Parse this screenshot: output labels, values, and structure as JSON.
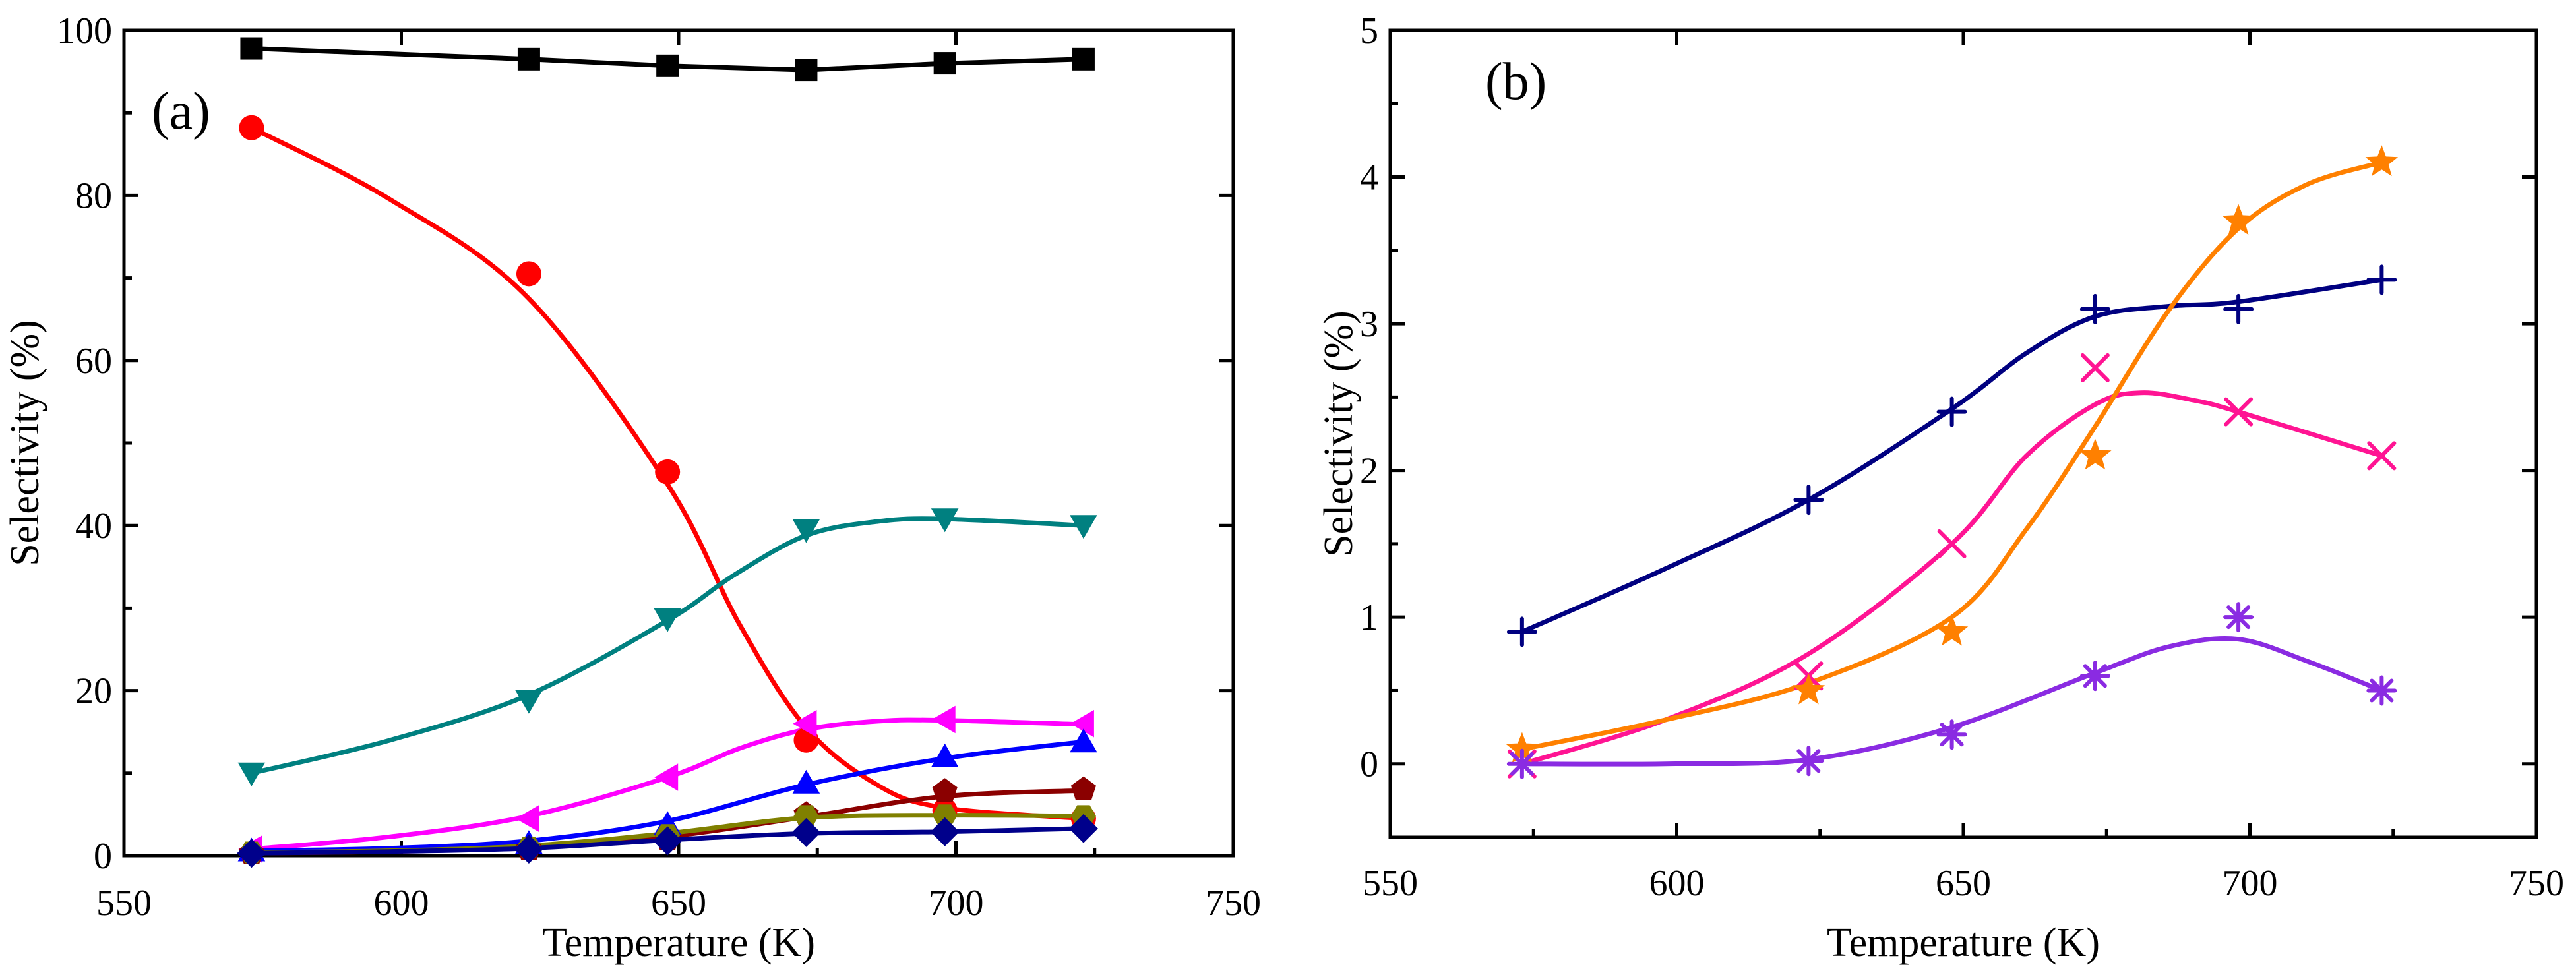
{
  "chart_data": [
    {
      "type": "line",
      "panel_label": "(a)",
      "xlabel": "Temperature (K)",
      "ylabel": "Selectivity (%)",
      "xlim": [
        550,
        750
      ],
      "ylim": [
        0,
        100
      ],
      "xticks": [
        550,
        600,
        650,
        700,
        750
      ],
      "yticks": [
        0,
        20,
        40,
        60,
        80,
        100
      ],
      "x": [
        573,
        623,
        648,
        673,
        698,
        723
      ],
      "series": [
        {
          "name": "square",
          "marker": "square",
          "color": "#000000",
          "line": "straight",
          "values": [
            97.8,
            96.5,
            95.7,
            95.2,
            96.0,
            96.5
          ]
        },
        {
          "name": "circle",
          "marker": "circle",
          "color": "#ff0000",
          "line": "smooth",
          "values": [
            88.2,
            70.5,
            46.5,
            14.0,
            5.5,
            4.5
          ],
          "fit": [
            [
              573,
              88.2
            ],
            [
              598,
              79.5
            ],
            [
              623,
              67.5
            ],
            [
              648,
              45.0
            ],
            [
              661,
              28.0
            ],
            [
              673,
              15.5
            ],
            [
              686,
              8.5
            ],
            [
              698,
              5.8
            ],
            [
              723,
              4.5
            ]
          ]
        },
        {
          "name": "triangle-down",
          "marker": "triangle-down",
          "color": "#008080",
          "line": "smooth",
          "values": [
            10.0,
            18.8,
            28.7,
            39.5,
            40.8,
            40.0
          ],
          "fit": [
            [
              573,
              10.0
            ],
            [
              598,
              14.0
            ],
            [
              623,
              19.5
            ],
            [
              648,
              28.5
            ],
            [
              660,
              34.0
            ],
            [
              673,
              38.8
            ],
            [
              686,
              40.5
            ],
            [
              698,
              40.8
            ],
            [
              723,
              40.0
            ]
          ]
        },
        {
          "name": "triangle-left",
          "marker": "triangle-left",
          "color": "#ff00ff",
          "line": "smooth",
          "values": [
            0.8,
            4.5,
            9.5,
            16.0,
            16.5,
            16.0
          ],
          "fit": [
            [
              573,
              0.8
            ],
            [
              598,
              2.3
            ],
            [
              623,
              4.8
            ],
            [
              648,
              9.5
            ],
            [
              661,
              13.0
            ],
            [
              673,
              15.3
            ],
            [
              686,
              16.3
            ],
            [
              698,
              16.4
            ],
            [
              723,
              15.9
            ]
          ]
        },
        {
          "name": "triangle-up",
          "marker": "triangle-up",
          "color": "#0000ff",
          "line": "smooth",
          "values": [
            0.6,
            1.5,
            3.8,
            8.8,
            12.0,
            13.8
          ],
          "fit": [
            [
              573,
              0.6
            ],
            [
              598,
              0.9
            ],
            [
              623,
              1.8
            ],
            [
              648,
              4.2
            ],
            [
              673,
              8.6
            ],
            [
              698,
              11.8
            ],
            [
              723,
              13.8
            ]
          ]
        },
        {
          "name": "pentagon",
          "marker": "pentagon",
          "color": "#8b0000",
          "line": "smooth",
          "values": [
            0.3,
            0.8,
            2.0,
            5.0,
            7.8,
            8.0
          ],
          "fit": [
            [
              573,
              0.3
            ],
            [
              598,
              0.5
            ],
            [
              623,
              1.0
            ],
            [
              648,
              2.3
            ],
            [
              673,
              4.7
            ],
            [
              698,
              7.2
            ],
            [
              723,
              7.9
            ]
          ]
        },
        {
          "name": "hexagon",
          "marker": "hexagon",
          "color": "#808000",
          "line": "smooth",
          "values": [
            0.4,
            1.0,
            2.5,
            4.8,
            4.9,
            4.8
          ],
          "fit": [
            [
              573,
              0.4
            ],
            [
              598,
              0.6
            ],
            [
              623,
              1.2
            ],
            [
              648,
              2.7
            ],
            [
              673,
              4.6
            ],
            [
              698,
              4.9
            ],
            [
              723,
              4.8
            ]
          ]
        },
        {
          "name": "diamond",
          "marker": "diamond",
          "color": "#00008b",
          "line": "smooth",
          "values": [
            0.3,
            0.8,
            1.8,
            2.8,
            2.9,
            3.3
          ],
          "fit": [
            [
              573,
              0.3
            ],
            [
              598,
              0.5
            ],
            [
              623,
              0.9
            ],
            [
              648,
              1.9
            ],
            [
              673,
              2.7
            ],
            [
              698,
              2.9
            ],
            [
              723,
              3.3
            ]
          ]
        }
      ]
    },
    {
      "type": "line",
      "panel_label": "(b)",
      "xlabel": "Temperature (K)",
      "ylabel": "Selectivity (%)",
      "xlim": [
        550,
        750
      ],
      "ylim": [
        -0.5,
        5
      ],
      "xticks": [
        550,
        600,
        650,
        700,
        750
      ],
      "yticks": [
        0,
        1,
        2,
        3,
        4,
        5
      ],
      "x": [
        573,
        623,
        648,
        673,
        698,
        723
      ],
      "series": [
        {
          "name": "plus",
          "marker": "plus",
          "color": "#000080",
          "line": "smooth",
          "values": [
            0.9,
            1.8,
            2.4,
            3.1,
            3.1,
            3.3
          ],
          "fit": [
            [
              573,
              0.9
            ],
            [
              598,
              1.33
            ],
            [
              623,
              1.8
            ],
            [
              648,
              2.42
            ],
            [
              661,
              2.8
            ],
            [
              673,
              3.05
            ],
            [
              686,
              3.12
            ],
            [
              698,
              3.15
            ],
            [
              723,
              3.3
            ]
          ]
        },
        {
          "name": "x",
          "marker": "x",
          "color": "#ff1493",
          "line": "smooth",
          "values": [
            0.0,
            0.6,
            1.5,
            2.7,
            2.4,
            2.1
          ],
          "fit": [
            [
              573,
              0.0
            ],
            [
              598,
              0.3
            ],
            [
              623,
              0.75
            ],
            [
              648,
              1.5
            ],
            [
              661,
              2.1
            ],
            [
              673,
              2.45
            ],
            [
              681,
              2.53
            ],
            [
              690,
              2.48
            ],
            [
              698,
              2.4
            ],
            [
              723,
              2.1
            ]
          ]
        },
        {
          "name": "star",
          "marker": "star",
          "color": "#ff8000",
          "line": "smooth",
          "values": [
            0.1,
            0.5,
            0.9,
            2.1,
            3.7,
            4.1
          ],
          "fit": [
            [
              573,
              0.1
            ],
            [
              598,
              0.3
            ],
            [
              623,
              0.55
            ],
            [
              648,
              1.0
            ],
            [
              661,
              1.6
            ],
            [
              673,
              2.3
            ],
            [
              686,
              3.1
            ],
            [
              698,
              3.65
            ],
            [
              710,
              3.95
            ],
            [
              723,
              4.1
            ]
          ]
        },
        {
          "name": "asterisk",
          "marker": "asterisk",
          "color": "#8a2be2",
          "line": "smooth",
          "values": [
            0.0,
            0.02,
            0.2,
            0.6,
            1.0,
            0.5
          ],
          "fit": [
            [
              573,
              0.0
            ],
            [
              598,
              0.0
            ],
            [
              623,
              0.03
            ],
            [
              648,
              0.25
            ],
            [
              673,
              0.62
            ],
            [
              686,
              0.8
            ],
            [
              698,
              0.85
            ],
            [
              710,
              0.7
            ],
            [
              723,
              0.5
            ]
          ]
        }
      ]
    }
  ]
}
